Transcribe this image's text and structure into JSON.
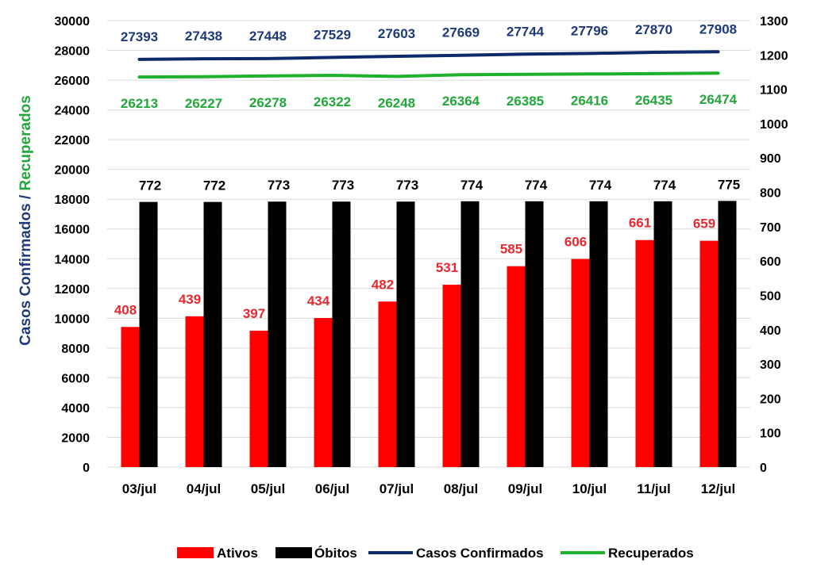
{
  "chart_data": {
    "type": "bar",
    "categories": [
      "03/jul",
      "04/jul",
      "05/jul",
      "06/jul",
      "07/jul",
      "08/jul",
      "09/jul",
      "10/jul",
      "11/jul",
      "12/jul"
    ],
    "ylabel_parts": [
      "Casos Confirmados",
      " / ",
      "Recuperados"
    ],
    "ylim_left": [
      0,
      30000
    ],
    "ylim_right": [
      0,
      1300
    ],
    "left_ticks": [
      0,
      2000,
      4000,
      6000,
      8000,
      10000,
      12000,
      14000,
      16000,
      18000,
      20000,
      22000,
      24000,
      26000,
      28000,
      30000
    ],
    "right_ticks": [
      0,
      100,
      200,
      300,
      400,
      500,
      600,
      700,
      800,
      900,
      1000,
      1100,
      1200,
      1300
    ],
    "grid": true,
    "legend_position": "bottom",
    "series": [
      {
        "name": "Ativos",
        "type": "bar",
        "axis": "right",
        "color": "#ff0000",
        "label_color": "#e8282e",
        "values": [
          408,
          439,
          397,
          434,
          482,
          531,
          585,
          606,
          661,
          659
        ]
      },
      {
        "name": "Óbitos",
        "type": "bar",
        "axis": "right",
        "color": "#000000",
        "label_color": "#000000",
        "values": [
          772,
          772,
          773,
          773,
          773,
          774,
          774,
          774,
          774,
          775
        ]
      },
      {
        "name": "Casos Confirmados",
        "type": "line",
        "axis": "left",
        "color": "#0d2b6b",
        "label_color": "#1f3a7a",
        "values": [
          27393,
          27438,
          27448,
          27529,
          27603,
          27669,
          27744,
          27796,
          27870,
          27908
        ]
      },
      {
        "name": "Recuperados",
        "type": "line",
        "axis": "left",
        "color": "#1fb02c",
        "label_color": "#22a83a",
        "values": [
          26213,
          26227,
          26278,
          26322,
          26248,
          26364,
          26385,
          26416,
          26435,
          26474
        ]
      }
    ]
  }
}
